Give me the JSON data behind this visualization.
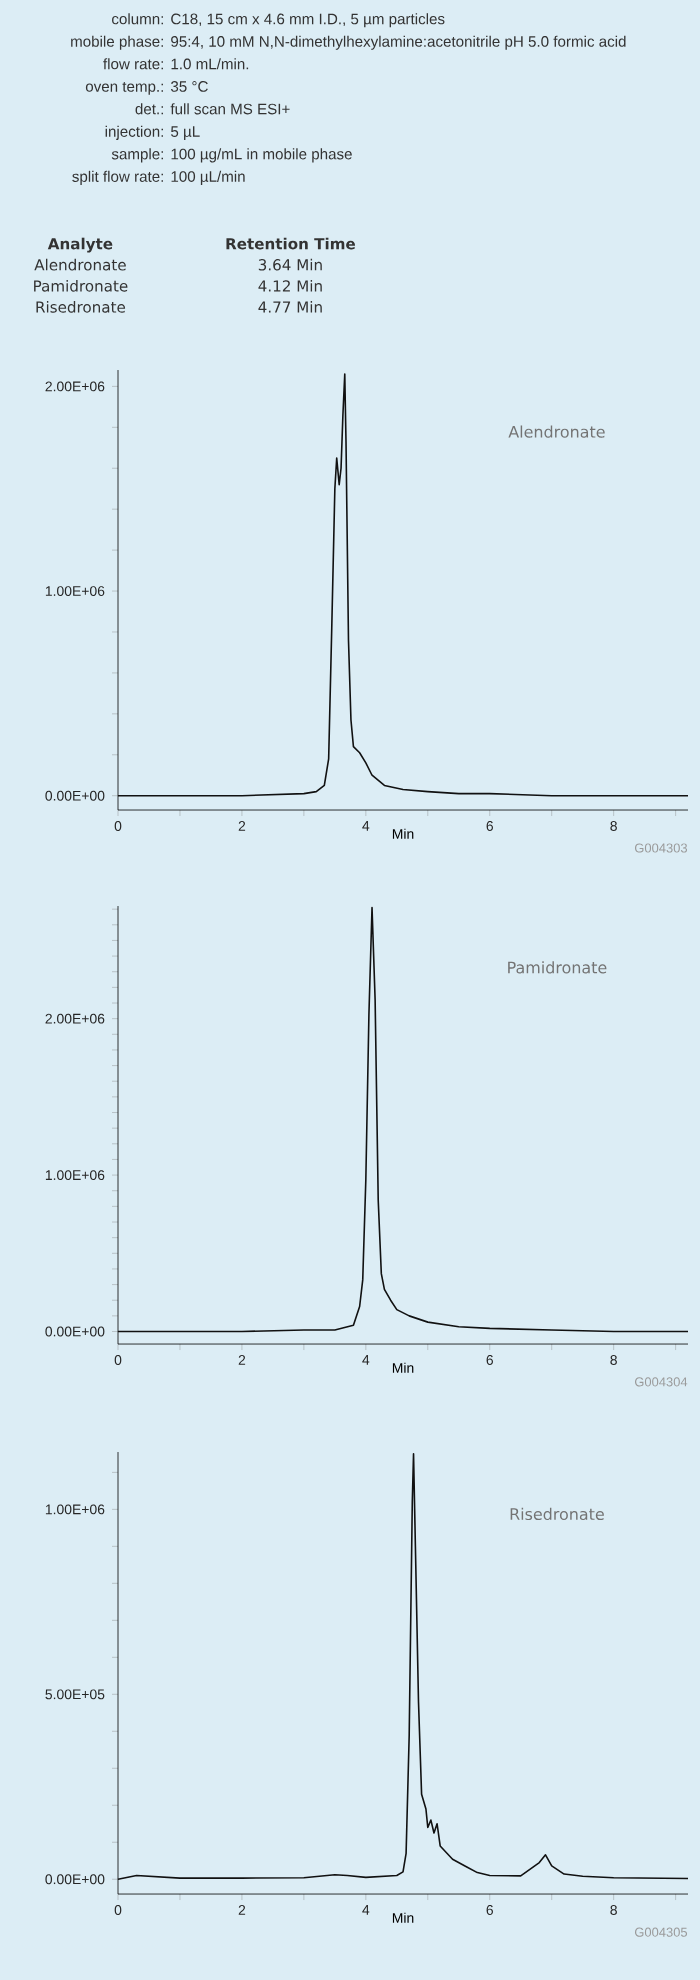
{
  "chart_data": [
    {
      "type": "other",
      "annotations": [
        "column:",
        "C18, 15 cm x 4.6 mm I.D., 5 µm particles",
        "mobile phase:",
        "95:4, 10 mM N,N-dimethylhexylamine:acetonitrile pH 5.0 formic acid",
        "flow rate:",
        "1.0 mL/min.",
        "oven temp.:",
        "35 °C",
        "det.:",
        "full scan MS ESI+",
        "injection:",
        "5 µL",
        "sample:",
        "100 µg/mL in mobile phase",
        "split flow rate:",
        "100 µL/min"
      ]
    },
    {
      "type": "other",
      "annotations": [
        "Analyte",
        "Retention Time",
        "Alendronate",
        "3.64 Min",
        "Pamidronate",
        "4.12 Min",
        "Risedronate",
        "4.77 Min"
      ]
    },
    {
      "type": "line",
      "xlabel": "Min",
      "annotations": [
        "Alendronate",
        "G004303"
      ],
      "x": [
        0,
        1,
        2,
        3.0,
        3.2,
        3.33,
        3.4,
        3.45,
        3.5,
        3.53,
        3.57,
        3.6,
        3.63,
        3.66,
        3.68,
        3.72,
        3.76,
        3.8,
        3.9,
        4.0,
        4.1,
        4.3,
        4.6,
        5.0,
        5.5,
        6,
        7,
        8,
        9.2
      ],
      "series": [
        {
          "color": "#111111",
          "values": [
            0,
            0,
            0,
            10000,
            20000,
            50000,
            180000,
            820000,
            1500000,
            1650000,
            1520000,
            1600000,
            1860000,
            2060000,
            1730000,
            760000,
            370000,
            240000,
            210000,
            160000,
            100000,
            50000,
            30000,
            20000,
            10000,
            10000,
            0,
            0,
            0
          ]
        }
      ],
      "xlim": [
        0,
        9.2
      ],
      "ylim": [
        -70000,
        2080000
      ],
      "xticks": [
        0,
        {
          "value": 1,
          "label": null
        },
        2,
        {
          "value": 3,
          "label": null
        },
        4,
        {
          "value": 5,
          "label": null
        },
        6,
        {
          "value": 7,
          "label": null
        },
        8,
        {
          "value": 9,
          "label": null
        }
      ],
      "yticks": [
        {
          "value": 0,
          "label": "0.00E+00"
        },
        {
          "value": 200000,
          "label": null
        },
        {
          "value": 400000,
          "label": null
        },
        {
          "value": 600000,
          "label": null
        },
        {
          "value": 800000,
          "label": null
        },
        {
          "value": 1000000,
          "label": "1.00E+06"
        },
        {
          "value": 1200000,
          "label": null
        },
        {
          "value": 1400000,
          "label": null
        },
        {
          "value": 1600000,
          "label": null
        },
        {
          "value": 1800000,
          "label": null
        },
        {
          "value": 2000000,
          "label": "2.00E+06"
        }
      ]
    },
    {
      "type": "line",
      "xlabel": "Min",
      "annotations": [
        "Pamidronate",
        "G004304"
      ],
      "x": [
        0,
        1,
        2,
        3,
        3.5,
        3.8,
        3.9,
        3.95,
        4.0,
        4.05,
        4.1,
        4.15,
        4.2,
        4.25,
        4.3,
        4.4,
        4.5,
        4.7,
        5.0,
        5.5,
        6,
        7,
        8,
        9.2
      ],
      "series": [
        {
          "color": "#111111",
          "values": [
            0,
            0,
            0,
            10000,
            10000,
            40000,
            160000,
            330000,
            970000,
            2030000,
            2710000,
            2120000,
            840000,
            370000,
            270000,
            200000,
            140000,
            100000,
            60000,
            30000,
            20000,
            10000,
            0,
            0
          ]
        }
      ],
      "xlim": [
        0,
        9.2
      ],
      "ylim": [
        -80000,
        2720000
      ],
      "xticks": [
        0,
        {
          "value": 1,
          "label": null
        },
        2,
        {
          "value": 3,
          "label": null
        },
        4,
        {
          "value": 5,
          "label": null
        },
        6,
        {
          "value": 7,
          "label": null
        },
        8,
        {
          "value": 9,
          "label": null
        }
      ],
      "yticks": [
        {
          "value": 0,
          "label": "0.00E+00"
        },
        {
          "value": 100000,
          "label": null
        },
        {
          "value": 200000,
          "label": null
        },
        {
          "value": 300000,
          "label": null
        },
        {
          "value": 400000,
          "label": null
        },
        {
          "value": 500000,
          "label": null
        },
        {
          "value": 600000,
          "label": null
        },
        {
          "value": 700000,
          "label": null
        },
        {
          "value": 800000,
          "label": null
        },
        {
          "value": 900000,
          "label": null
        },
        {
          "value": 1000000,
          "label": "1.00E+06"
        },
        {
          "value": 1100000,
          "label": null
        },
        {
          "value": 1200000,
          "label": null
        },
        {
          "value": 1300000,
          "label": null
        },
        {
          "value": 1400000,
          "label": null
        },
        {
          "value": 1500000,
          "label": null
        },
        {
          "value": 1600000,
          "label": null
        },
        {
          "value": 1700000,
          "label": null
        },
        {
          "value": 1800000,
          "label": null
        },
        {
          "value": 1900000,
          "label": null
        },
        {
          "value": 2000000,
          "label": "2.00E+06"
        },
        {
          "value": 2100000,
          "label": null
        },
        {
          "value": 2200000,
          "label": null
        },
        {
          "value": 2300000,
          "label": null
        },
        {
          "value": 2400000,
          "label": null
        },
        {
          "value": 2500000,
          "label": null
        },
        {
          "value": 2600000,
          "label": null
        },
        {
          "value": 2700000,
          "label": null
        }
      ]
    },
    {
      "type": "line",
      "xlabel": "Min",
      "annotations": [
        "Risedronate",
        "G004305"
      ],
      "x": [
        0,
        0.3,
        1,
        2,
        3,
        3.5,
        3.7,
        4.0,
        4.5,
        4.6,
        4.65,
        4.7,
        4.75,
        4.77,
        4.8,
        4.85,
        4.9,
        4.97,
        5.0,
        5.05,
        5.1,
        5.15,
        5.2,
        5.4,
        5.6,
        5.8,
        6,
        6.5,
        6.8,
        6.9,
        7.0,
        7.2,
        7.5,
        8,
        9.2
      ],
      "series": [
        {
          "color": "#111111",
          "values": [
            0,
            10000,
            3000,
            3000,
            4000,
            12000,
            10000,
            5000,
            10000,
            20000,
            70000,
            390000,
            1020000,
            1150000,
            900000,
            480000,
            230000,
            190000,
            140000,
            160000,
            125000,
            150000,
            90000,
            54000,
            36000,
            18000,
            10000,
            9000,
            45000,
            66000,
            36000,
            14000,
            8000,
            4000,
            2000
          ]
        }
      ],
      "xlim": [
        0,
        9.2
      ],
      "ylim": [
        -40000,
        1155000
      ],
      "xticks": [
        0,
        {
          "value": 1,
          "label": null
        },
        2,
        {
          "value": 3,
          "label": null
        },
        4,
        {
          "value": 5,
          "label": null
        },
        6,
        {
          "value": 7,
          "label": null
        },
        8,
        {
          "value": 9,
          "label": null
        }
      ],
      "yticks": [
        {
          "value": 0,
          "label": "0.00E+00"
        },
        {
          "value": 100000,
          "label": null
        },
        {
          "value": 200000,
          "label": null
        },
        {
          "value": 300000,
          "label": null
        },
        {
          "value": 400000,
          "label": null
        },
        {
          "value": 500000,
          "label": "5.00E+05"
        },
        {
          "value": 600000,
          "label": null
        },
        {
          "value": 700000,
          "label": null
        },
        {
          "value": 800000,
          "label": null
        },
        {
          "value": 900000,
          "label": null
        },
        {
          "value": 1000000,
          "label": "1.00E+06"
        },
        {
          "value": 1100000,
          "label": null
        }
      ]
    }
  ]
}
